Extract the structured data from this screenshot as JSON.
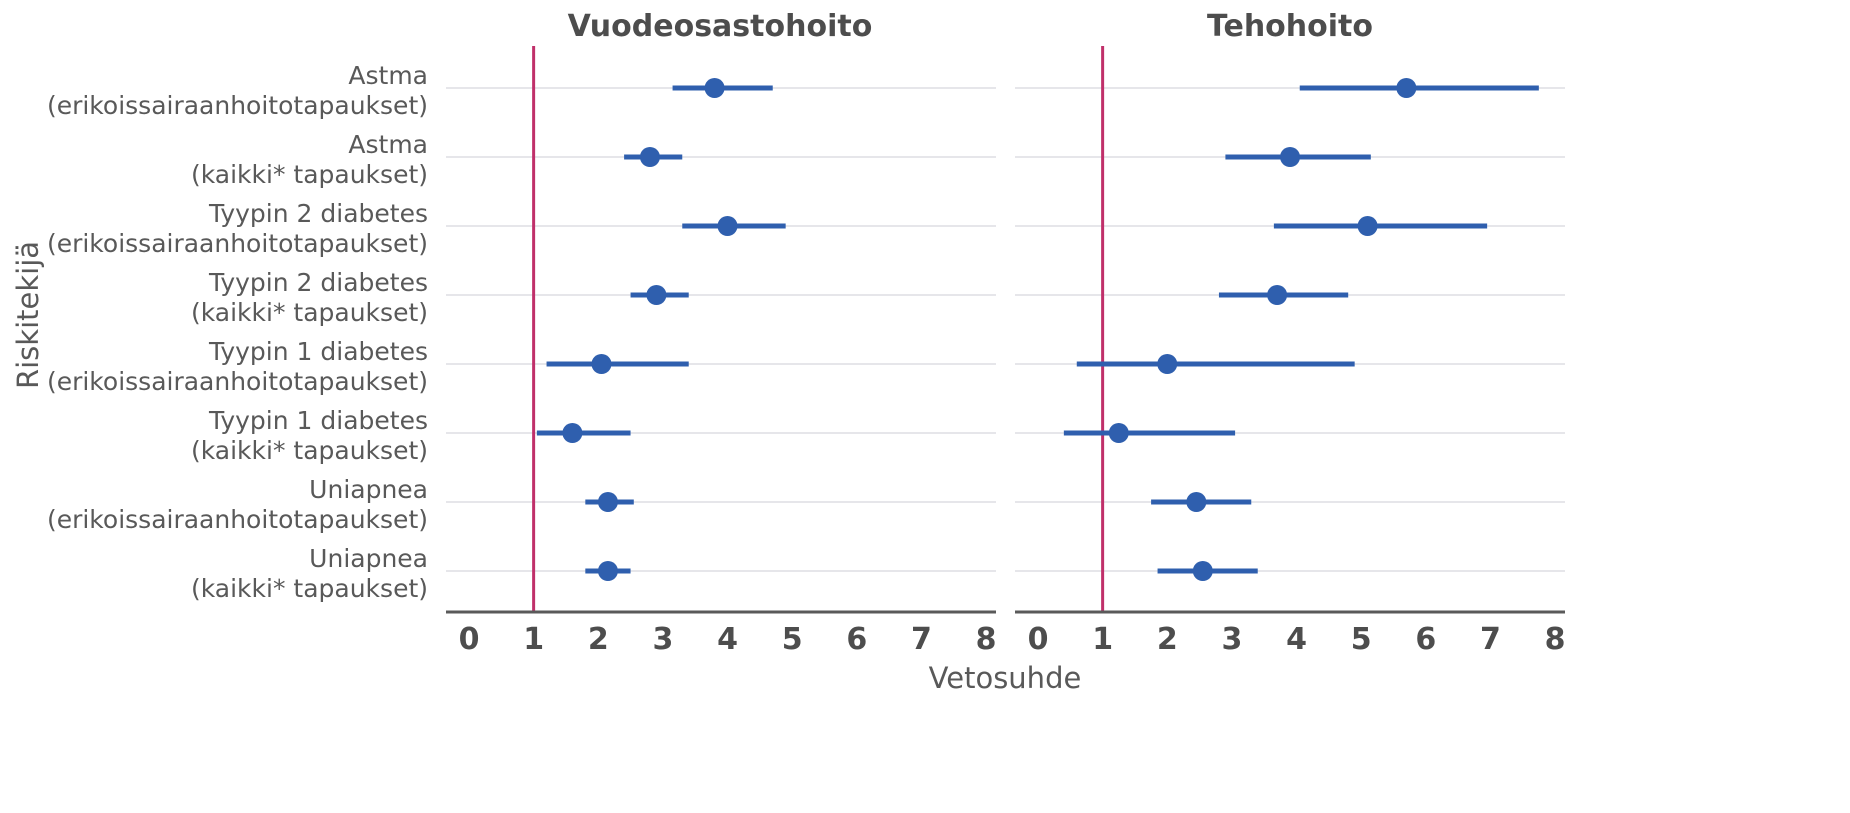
{
  "chart_data": {
    "type": "scatter",
    "xlabel": "Vetosuhde",
    "ylabel": "Riskitekijä",
    "xlim": [
      0,
      8
    ],
    "xticks": [
      0,
      1,
      2,
      3,
      4,
      5,
      6,
      7,
      8
    ],
    "reference_line": 1,
    "grid": "horizontal",
    "colors": {
      "point": "#2f5fae",
      "reference": "#c0306a",
      "axis": "#5a5a5a",
      "grid": "#e6e6ea"
    },
    "rows": [
      [
        "Astma",
        "(erikoissairaanhoitotapaukset)"
      ],
      [
        "Astma",
        "(kaikki* tapaukset)"
      ],
      [
        "Tyypin 2 diabetes",
        "(erikoissairaanhoitotapaukset)"
      ],
      [
        "Tyypin 2 diabetes",
        "(kaikki* tapaukset)"
      ],
      [
        "Tyypin 1 diabetes",
        "(erikoissairaanhoitotapaukset)"
      ],
      [
        "Tyypin 1 diabetes",
        "(kaikki* tapaukset)"
      ],
      [
        "Uniapnea",
        "(erikoissairaanhoitotapaukset)"
      ],
      [
        "Uniapnea",
        "(kaikki* tapaukset)"
      ]
    ],
    "panels": [
      {
        "title": "Vuodeosastohoito",
        "estimates": [
          3.8,
          2.8,
          4.0,
          2.9,
          2.05,
          1.6,
          2.15,
          2.15
        ],
        "lower": [
          3.15,
          2.4,
          3.3,
          2.5,
          1.2,
          1.05,
          1.8,
          1.8
        ],
        "upper": [
          4.7,
          3.3,
          4.9,
          3.4,
          3.4,
          2.5,
          2.55,
          2.5
        ]
      },
      {
        "title": "Tehohoito",
        "estimates": [
          5.7,
          3.9,
          5.1,
          3.7,
          2.0,
          1.25,
          2.45,
          2.55
        ],
        "lower": [
          4.05,
          2.9,
          3.65,
          2.8,
          0.6,
          0.4,
          1.75,
          1.85
        ],
        "upper": [
          7.75,
          5.15,
          6.95,
          4.8,
          4.9,
          3.05,
          3.3,
          3.4
        ]
      }
    ]
  }
}
